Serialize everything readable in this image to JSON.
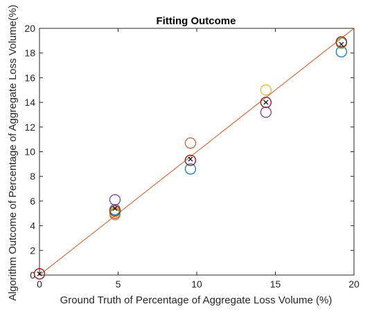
{
  "chart_data": {
    "type": "scatter",
    "title": "Fitting Outcome",
    "xlabel": "Ground Truth of Percentage of Aggregate Loss Volume (%)",
    "ylabel": "Algorithm Outcome of Percentage of Aggregate Loss Volume(%)",
    "xlim": [
      0,
      20
    ],
    "ylim": [
      0,
      20
    ],
    "xticks": [
      0,
      5,
      10,
      15,
      20
    ],
    "yticks": [
      0,
      2,
      4,
      6,
      8,
      10,
      12,
      14,
      16,
      18,
      20
    ],
    "grid": false,
    "legend": "none",
    "colors": {
      "fit_line": "#D95319",
      "blue": "#0072BD",
      "orange": "#D95319",
      "yellow": "#EDB120",
      "purple": "#7E2F8E",
      "green": "#77AC30",
      "red": "#A2142F",
      "mean_marker": "#000000",
      "axis": "#262626"
    },
    "fit_line": {
      "x": [
        0,
        20
      ],
      "y": [
        0,
        20
      ]
    },
    "series": [
      {
        "color_key": "blue",
        "marker": "circle",
        "x": [
          0,
          4.8,
          9.6,
          14.4,
          19.2
        ],
        "y": [
          0.1,
          5.3,
          8.6,
          14.0,
          18.1
        ]
      },
      {
        "color_key": "orange",
        "marker": "circle",
        "x": [
          0,
          4.8,
          9.6,
          14.4,
          19.2
        ],
        "y": [
          0.1,
          5.0,
          10.7,
          14.0,
          18.9
        ]
      },
      {
        "color_key": "yellow",
        "marker": "circle",
        "x": [
          0,
          4.8,
          9.6,
          14.4,
          19.2
        ],
        "y": [
          0.1,
          5.1,
          9.3,
          15.0,
          18.8
        ]
      },
      {
        "color_key": "purple",
        "marker": "circle",
        "x": [
          0,
          4.8,
          9.6,
          14.4,
          19.2
        ],
        "y": [
          0.1,
          6.1,
          9.3,
          13.2,
          18.8
        ]
      },
      {
        "color_key": "green",
        "marker": "circle",
        "x": [
          0,
          4.8,
          9.6,
          14.4,
          19.2
        ],
        "y": [
          0.1,
          4.9,
          9.3,
          14.0,
          18.8
        ]
      },
      {
        "color_key": "red",
        "marker": "circle",
        "x": [
          0,
          4.8,
          9.6,
          14.4,
          19.2
        ],
        "y": [
          0.1,
          5.2,
          9.3,
          14.0,
          18.9
        ]
      },
      {
        "color_key": "mean_marker",
        "marker": "x",
        "x": [
          0,
          4.8,
          9.6,
          14.4,
          19.2
        ],
        "y": [
          0.1,
          5.4,
          9.4,
          14.0,
          18.7
        ]
      }
    ]
  }
}
